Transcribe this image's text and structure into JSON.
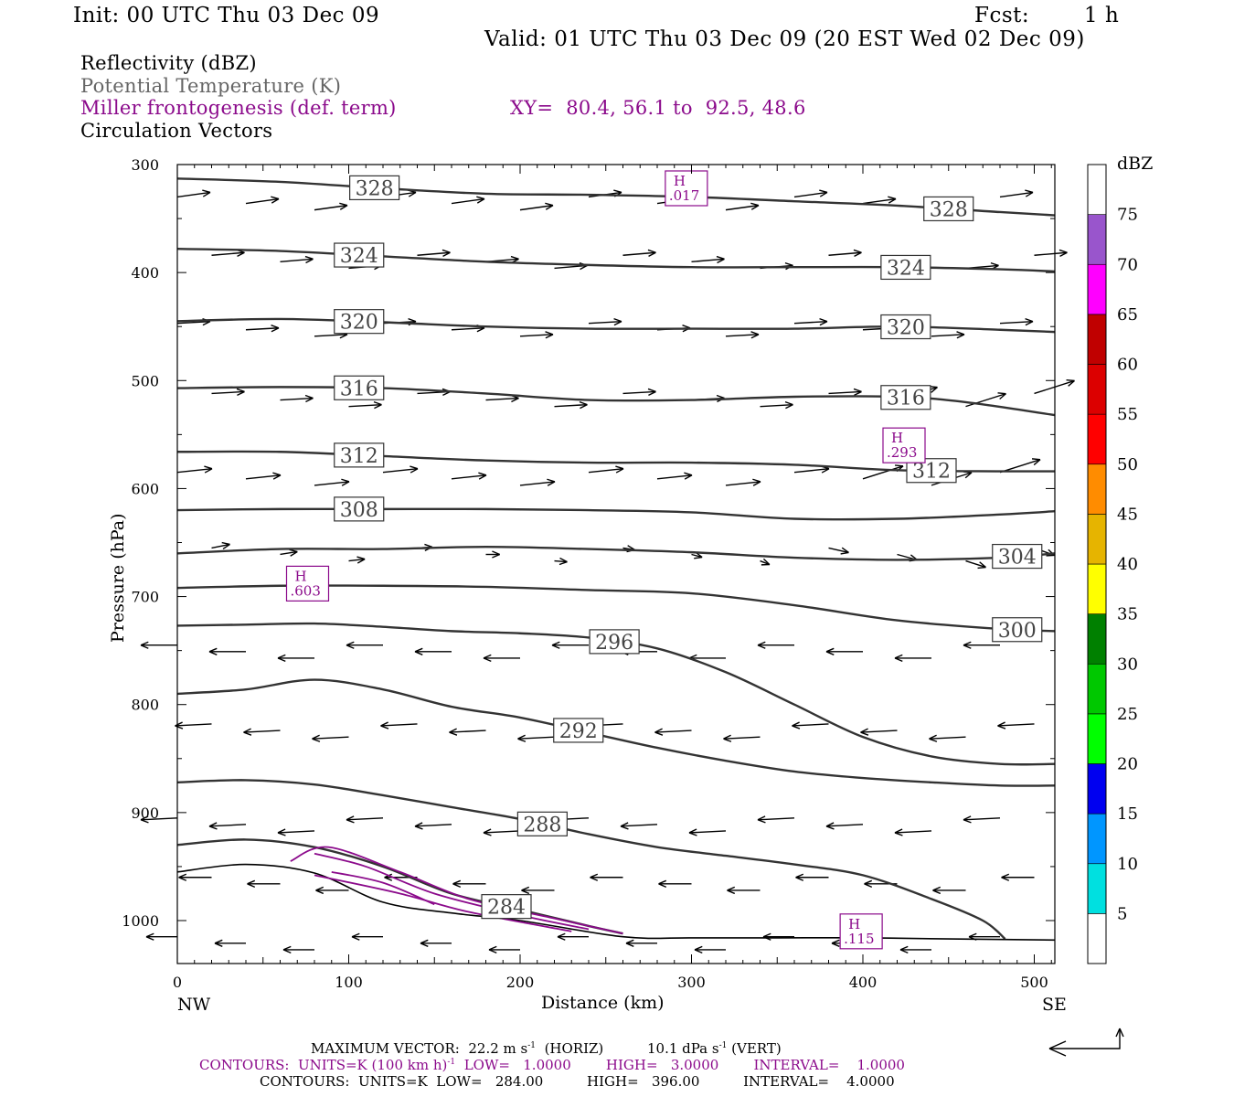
{
  "header": {
    "init": "Init: 00 UTC Thu 03 Dec 09",
    "fcst_label": "Fcst:",
    "fcst_value": "1 h",
    "valid": "Valid: 01 UTC Thu 03 Dec 09 (20 EST Wed 02 Dec 09)"
  },
  "legend_lines": {
    "reflectivity": "Reflectivity (dBZ)",
    "theta": "Potential Temperature (K)",
    "miller": "Miller frontogenesis (def. term)",
    "xy": "XY=  80.4, 56.1 to  92.5, 48.6",
    "vectors": "Circulation Vectors"
  },
  "chart_data": {
    "type": "line",
    "subtype": "vertical cross-section",
    "xlabel": "Distance (km)",
    "ylabel": "Pressure (hPa)",
    "xlim": [
      0,
      512
    ],
    "ylim": [
      1040,
      300
    ],
    "x_ticks": [
      0,
      100,
      200,
      300,
      400,
      500
    ],
    "y_ticks": [
      300,
      400,
      500,
      600,
      700,
      800,
      900,
      1000
    ],
    "x_end_labels": {
      "left": "NW",
      "right": "SE"
    },
    "theta_contours": [
      {
        "value": 328,
        "label": "328",
        "x": [
          0,
          60,
          120,
          180,
          240,
          300,
          360,
          420,
          480,
          512
        ],
        "p": [
          313,
          316,
          322,
          327,
          328,
          330,
          334,
          338,
          344,
          347
        ]
      },
      {
        "value": 324,
        "label": "324",
        "x": [
          0,
          60,
          120,
          180,
          240,
          300,
          360,
          420,
          480,
          512
        ],
        "p": [
          378,
          380,
          385,
          390,
          393,
          395,
          395,
          395,
          397,
          399
        ]
      },
      {
        "value": 320,
        "label": "320",
        "x": [
          0,
          60,
          120,
          180,
          240,
          300,
          360,
          420,
          480,
          512
        ],
        "p": [
          445,
          443,
          446,
          450,
          452,
          452,
          452,
          450,
          453,
          455
        ]
      },
      {
        "value": 316,
        "label": "316",
        "x": [
          0,
          60,
          120,
          180,
          240,
          300,
          360,
          420,
          460,
          512
        ],
        "p": [
          507,
          506,
          507,
          512,
          518,
          518,
          515,
          515,
          520,
          532
        ]
      },
      {
        "value": 312,
        "label": "312",
        "x": [
          0,
          60,
          120,
          180,
          240,
          300,
          360,
          420,
          480,
          512
        ],
        "p": [
          566,
          566,
          570,
          574,
          576,
          576,
          578,
          583,
          584,
          584
        ]
      },
      {
        "value": 308,
        "label": "308",
        "x": [
          0,
          60,
          120,
          180,
          240,
          300,
          360,
          420,
          480,
          512
        ],
        "p": [
          620,
          619,
          619,
          619,
          620,
          622,
          628,
          628,
          624,
          621
        ]
      },
      {
        "value": 304,
        "label": "304",
        "x": [
          0,
          60,
          120,
          180,
          240,
          300,
          360,
          420,
          480,
          512
        ],
        "p": [
          660,
          656,
          656,
          654,
          656,
          659,
          664,
          666,
          664,
          660
        ]
      },
      {
        "value": 300,
        "label": "300",
        "x": [
          0,
          60,
          120,
          180,
          240,
          300,
          360,
          420,
          480,
          512
        ],
        "p": [
          692,
          690,
          690,
          691,
          694,
          697,
          708,
          722,
          730,
          732
        ]
      },
      {
        "value": 296,
        "label": "296",
        "x": [
          0,
          40,
          80,
          120,
          160,
          200,
          240,
          280,
          320,
          360,
          400,
          440,
          480,
          512
        ],
        "p": [
          727,
          726,
          725,
          728,
          732,
          734,
          738,
          748,
          770,
          800,
          830,
          848,
          855,
          855
        ]
      },
      {
        "value": 292,
        "label": "292",
        "x": [
          0,
          40,
          80,
          120,
          160,
          200,
          240,
          280,
          320,
          360,
          400,
          440,
          480,
          512
        ],
        "p": [
          790,
          786,
          777,
          786,
          802,
          812,
          826,
          840,
          852,
          862,
          868,
          872,
          875,
          875
        ]
      },
      {
        "value": 288,
        "label": "288",
        "x": [
          0,
          40,
          80,
          120,
          160,
          200,
          240,
          280,
          320,
          360,
          400,
          440,
          470,
          483
        ],
        "p": [
          872,
          870,
          874,
          884,
          895,
          906,
          920,
          932,
          940,
          948,
          958,
          980,
          1000,
          1017
        ]
      },
      {
        "value": 284,
        "label": "284",
        "x": [
          0,
          40,
          80,
          120,
          160,
          200,
          240,
          260
        ],
        "p": [
          930,
          925,
          932,
          950,
          975,
          990,
          1005,
          1012
        ]
      }
    ],
    "ground_line": {
      "x": [
        0,
        40,
        80,
        120,
        160,
        200,
        260,
        300,
        350,
        400,
        450,
        512
      ],
      "p": [
        955,
        948,
        956,
        983,
        993,
        1000,
        1015,
        1016,
        1016,
        1016,
        1017,
        1018
      ]
    },
    "frontogenesis_maxima": [
      {
        "label": "H",
        "value": ".017",
        "x": 297,
        "p": 322
      },
      {
        "label": "H",
        "value": ".293",
        "x": 424,
        "p": 560
      },
      {
        "label": "H",
        "value": ".603",
        "x": 76,
        "p": 688
      },
      {
        "label": "H",
        "value": ".115",
        "x": 399,
        "p": 1010
      }
    ],
    "dbz_colorbar": {
      "unit": "dBZ",
      "levels": [
        "5",
        "10",
        "15",
        "20",
        "25",
        "30",
        "35",
        "40",
        "45",
        "50",
        "55",
        "60",
        "65",
        "70",
        "75"
      ],
      "colors": [
        "#00e0e0",
        "#0096ff",
        "#0000f0",
        "#00ff00",
        "#00c800",
        "#008000",
        "#ffff00",
        "#e6b400",
        "#ff8c00",
        "#ff0000",
        "#dc0000",
        "#c00000",
        "#ff00ff",
        "#9955cc",
        "#ffffff"
      ]
    }
  },
  "footer": {
    "max_vector": "MAXIMUM VECTOR:  22.2 m s",
    "max_vector_horiz": "(HORIZ)",
    "max_vector_vert": "10.1 dPa s",
    "max_vector_vert_tail": "(VERT)",
    "superscript": "-1",
    "contours_purple_a": "CONTOURS:  UNITS=K (100 km h)",
    "contours_purple_b": "LOW=   1.0000        HIGH=   3.0000        INTERVAL=    1.0000",
    "contours_black": "CONTOURS:  UNITS=K  LOW=   284.00          HIGH=   396.00          INTERVAL=    4.0000"
  }
}
